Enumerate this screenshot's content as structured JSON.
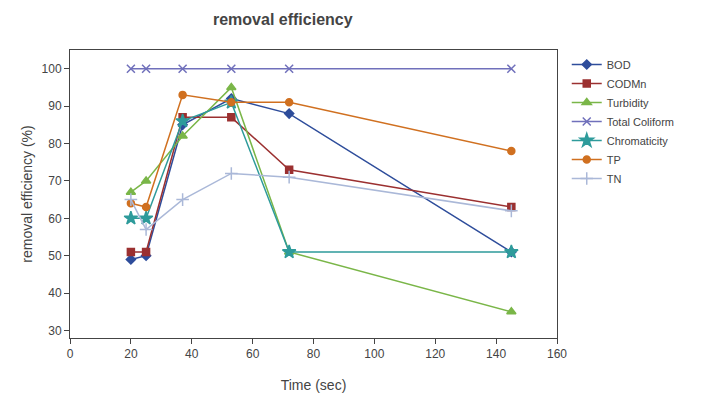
{
  "chart_data": {
    "type": "line",
    "title": "removal efficiency",
    "x_label": "Time (sec)",
    "y_label": "removal efficiency (%)",
    "xlim": [
      0,
      160
    ],
    "ylim": [
      28,
      105
    ],
    "xticks": [
      0,
      20,
      40,
      60,
      80,
      100,
      120,
      140,
      160
    ],
    "yticks": [
      30,
      40,
      50,
      60,
      70,
      80,
      90,
      100
    ],
    "grid": false,
    "legend": "right",
    "x": [
      20,
      25,
      37,
      53,
      72,
      145
    ],
    "series": [
      {
        "name": "BOD",
        "color": "#2e4d9b",
        "marker": "diamond",
        "values": [
          49,
          50,
          85,
          92,
          88,
          51
        ]
      },
      {
        "name": "CODMn",
        "color": "#9b3030",
        "marker": "square",
        "values": [
          51,
          51,
          87,
          87,
          73,
          63
        ]
      },
      {
        "name": "Turbidity",
        "color": "#7ab648",
        "marker": "triangle",
        "values": [
          67,
          70,
          82,
          95,
          51,
          35
        ]
      },
      {
        "name": "Total Coliform",
        "color": "#7070bb",
        "marker": "x",
        "values": [
          100,
          100,
          100,
          100,
          100,
          100
        ]
      },
      {
        "name": "Chromaticity",
        "color": "#2e9b9b",
        "marker": "star",
        "values": [
          60,
          60,
          86,
          91,
          51,
          51
        ]
      },
      {
        "name": "TP",
        "color": "#d07020",
        "marker": "circle",
        "values": [
          64,
          63,
          93,
          91,
          91,
          78
        ]
      },
      {
        "name": "TN",
        "color": "#aab8d8",
        "marker": "plus",
        "values": [
          65,
          57,
          65,
          72,
          71,
          62
        ]
      }
    ]
  }
}
